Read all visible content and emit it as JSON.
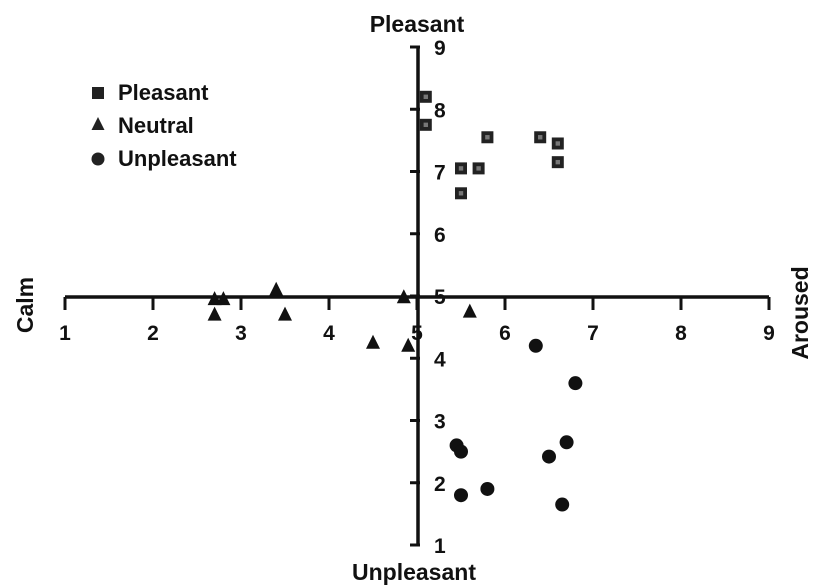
{
  "chart_data": {
    "type": "scatter",
    "xlabel_left": "Calm",
    "xlabel_right": "Aroused",
    "ylabel_top": "Pleasant",
    "ylabel_bottom": "Unpleasant",
    "xlim": [
      1,
      9
    ],
    "ylim": [
      1,
      9
    ],
    "x_ticks": [
      "1",
      "2",
      "3",
      "4",
      "5",
      "6",
      "7",
      "8",
      "9"
    ],
    "y_ticks": [
      "1",
      "2",
      "3",
      "4",
      "5",
      "6",
      "7",
      "8",
      "9"
    ],
    "grid": false,
    "legend_position": "top-left",
    "series": [
      {
        "name": "Pleasant",
        "marker": "square",
        "points": [
          {
            "x": 5.1,
            "y": 8.2
          },
          {
            "x": 5.1,
            "y": 7.75
          },
          {
            "x": 5.5,
            "y": 7.05
          },
          {
            "x": 5.7,
            "y": 7.05
          },
          {
            "x": 5.5,
            "y": 6.65
          },
          {
            "x": 5.8,
            "y": 7.55
          },
          {
            "x": 6.4,
            "y": 7.55
          },
          {
            "x": 6.6,
            "y": 7.45
          },
          {
            "x": 6.6,
            "y": 7.15
          }
        ]
      },
      {
        "name": "Neutral",
        "marker": "triangle",
        "points": [
          {
            "x": 2.7,
            "y": 4.95
          },
          {
            "x": 2.8,
            "y": 4.95
          },
          {
            "x": 2.7,
            "y": 4.7
          },
          {
            "x": 3.4,
            "y": 5.1
          },
          {
            "x": 3.5,
            "y": 4.7
          },
          {
            "x": 4.5,
            "y": 4.25
          },
          {
            "x": 4.9,
            "y": 4.2
          },
          {
            "x": 4.85,
            "y": 4.98
          },
          {
            "x": 5.6,
            "y": 4.75
          }
        ]
      },
      {
        "name": "Unpleasant",
        "marker": "circle",
        "points": [
          {
            "x": 6.35,
            "y": 4.2
          },
          {
            "x": 6.8,
            "y": 3.6
          },
          {
            "x": 5.45,
            "y": 2.6
          },
          {
            "x": 5.5,
            "y": 2.5
          },
          {
            "x": 6.5,
            "y": 2.42
          },
          {
            "x": 6.7,
            "y": 2.65
          },
          {
            "x": 5.5,
            "y": 1.8
          },
          {
            "x": 5.8,
            "y": 1.9
          },
          {
            "x": 6.65,
            "y": 1.65
          }
        ]
      }
    ]
  }
}
